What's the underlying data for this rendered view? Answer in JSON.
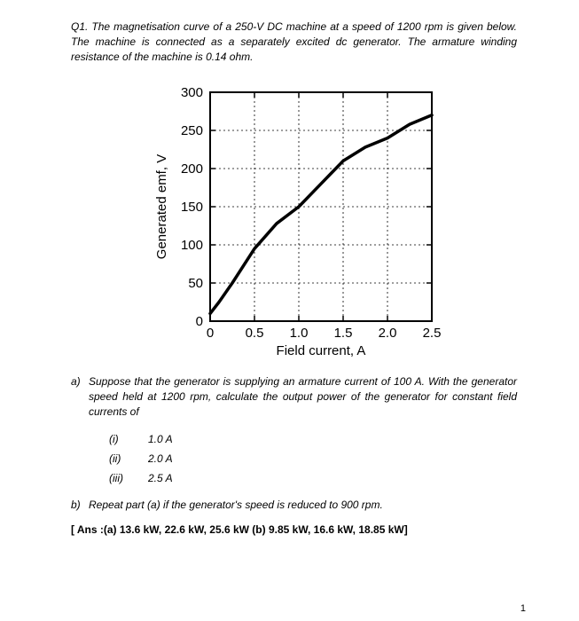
{
  "question": {
    "title": "Q1. The magnetisation curve of a 250-V DC machine at a speed of 1200 rpm is given below. The machine is connected as a separately excited dc generator. The armature winding resistance of the machine is 0.14 ohm."
  },
  "chart": {
    "type": "line",
    "xlabel": "Field current, A",
    "ylabel": "Generated emf, V",
    "xlim": [
      0,
      2.5
    ],
    "ylim": [
      0,
      300
    ],
    "xtick_step": 0.5,
    "ytick_step": 50,
    "xticks": [
      "0",
      "0.5",
      "1.0",
      "1.5",
      "2.0",
      "2.5"
    ],
    "yticks": [
      "0",
      "50",
      "100",
      "150",
      "200",
      "250",
      "300"
    ],
    "label_fontsize": 15,
    "tick_fontsize": 15,
    "background_color": "#ffffff",
    "grid_color": "#000000",
    "axis_color": "#000000",
    "axis_width": 2,
    "line_color": "#000000",
    "line_width": 3.5,
    "grid_dash": "2,3",
    "curve": [
      {
        "x": 0.0,
        "y": 10
      },
      {
        "x": 0.1,
        "y": 25
      },
      {
        "x": 0.25,
        "y": 50
      },
      {
        "x": 0.5,
        "y": 95
      },
      {
        "x": 0.75,
        "y": 128
      },
      {
        "x": 1.0,
        "y": 150
      },
      {
        "x": 1.25,
        "y": 180
      },
      {
        "x": 1.5,
        "y": 210
      },
      {
        "x": 1.75,
        "y": 228
      },
      {
        "x": 2.0,
        "y": 240
      },
      {
        "x": 2.25,
        "y": 258
      },
      {
        "x": 2.5,
        "y": 270
      }
    ]
  },
  "part_a": {
    "letter": "a)",
    "text": "Suppose that the generator is supplying an armature current of 100 A. With the generator speed held at 1200 rpm, calculate the output power of the generator for constant field currents of",
    "options": [
      {
        "label": "(i)",
        "value": "1.0 A"
      },
      {
        "label": "(ii)",
        "value": "2.0 A"
      },
      {
        "label": "(iii)",
        "value": "2.5 A"
      }
    ]
  },
  "part_b": {
    "letter": "b)",
    "text": "Repeat part (a) if the generator's speed is reduced to 900 rpm."
  },
  "answers": "[ Ans :(a) 13.6 kW, 22.6 kW, 25.6 kW (b) 9.85 kW, 16.6 kW, 18.85 kW]",
  "pagenum": "1"
}
